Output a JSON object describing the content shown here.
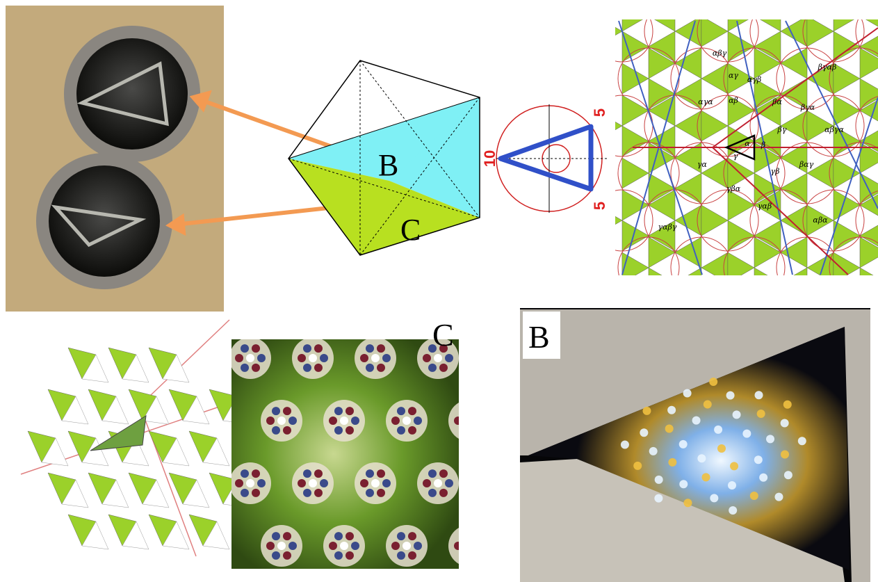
{
  "figure": {
    "octahedron_labels": [
      "B",
      "C"
    ],
    "triangle_diagram": {
      "left": "10",
      "top": "5",
      "bottom": "5"
    },
    "tiling_labels": [
      "αγα",
      "αβ",
      "α",
      "β",
      "γ",
      "βα",
      "αγ",
      "γα",
      "βγ",
      "γβ",
      "βγα",
      "αβγ",
      "γβα",
      "αγβ",
      "βαγ",
      "γαβ",
      "αβγα",
      "βγαβ",
      "γαβγ",
      "αβα"
    ],
    "panel_labels": {
      "kaleidoscope_c": "C",
      "kaleidoscope_b": "B"
    }
  }
}
